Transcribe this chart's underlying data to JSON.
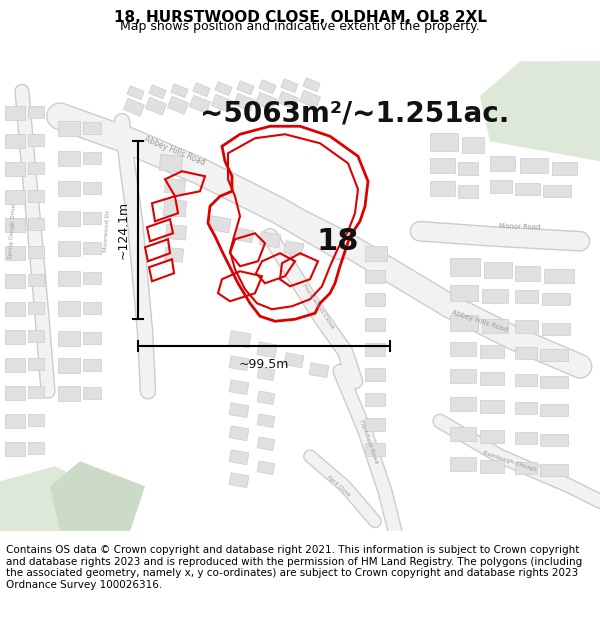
{
  "title_line1": "18, HURSTWOOD CLOSE, OLDHAM, OL8 2XL",
  "title_line2": "Map shows position and indicative extent of the property.",
  "area_text": "~5063m²/~1.251ac.",
  "label_18": "18",
  "dim_vertical": "~124.1m",
  "dim_horizontal": "~99.5m",
  "footer_text": "Contains OS data © Crown copyright and database right 2021. This information is subject to Crown copyright and database rights 2023 and is reproduced with the permission of HM Land Registry. The polygons (including the associated geometry, namely x, y co-ordinates) are subject to Crown copyright and database rights 2023 Ordnance Survey 100026316.",
  "bg_color": "#ffffff",
  "map_bg_color": "#f7f7f5",
  "green_area_color": "#dde8d8",
  "road_fill": "#f2f2f2",
  "road_edge": "#cccccc",
  "road_thin_color": "#e8b8b8",
  "building_color": "#e0e0e0",
  "building_stroke": "#c8c8c8",
  "highlight_color": "#dd0000",
  "title_fontsize": 11,
  "subtitle_fontsize": 9,
  "area_fontsize": 20,
  "label_fontsize": 22,
  "footer_fontsize": 7.5,
  "dim_fontsize": 9
}
